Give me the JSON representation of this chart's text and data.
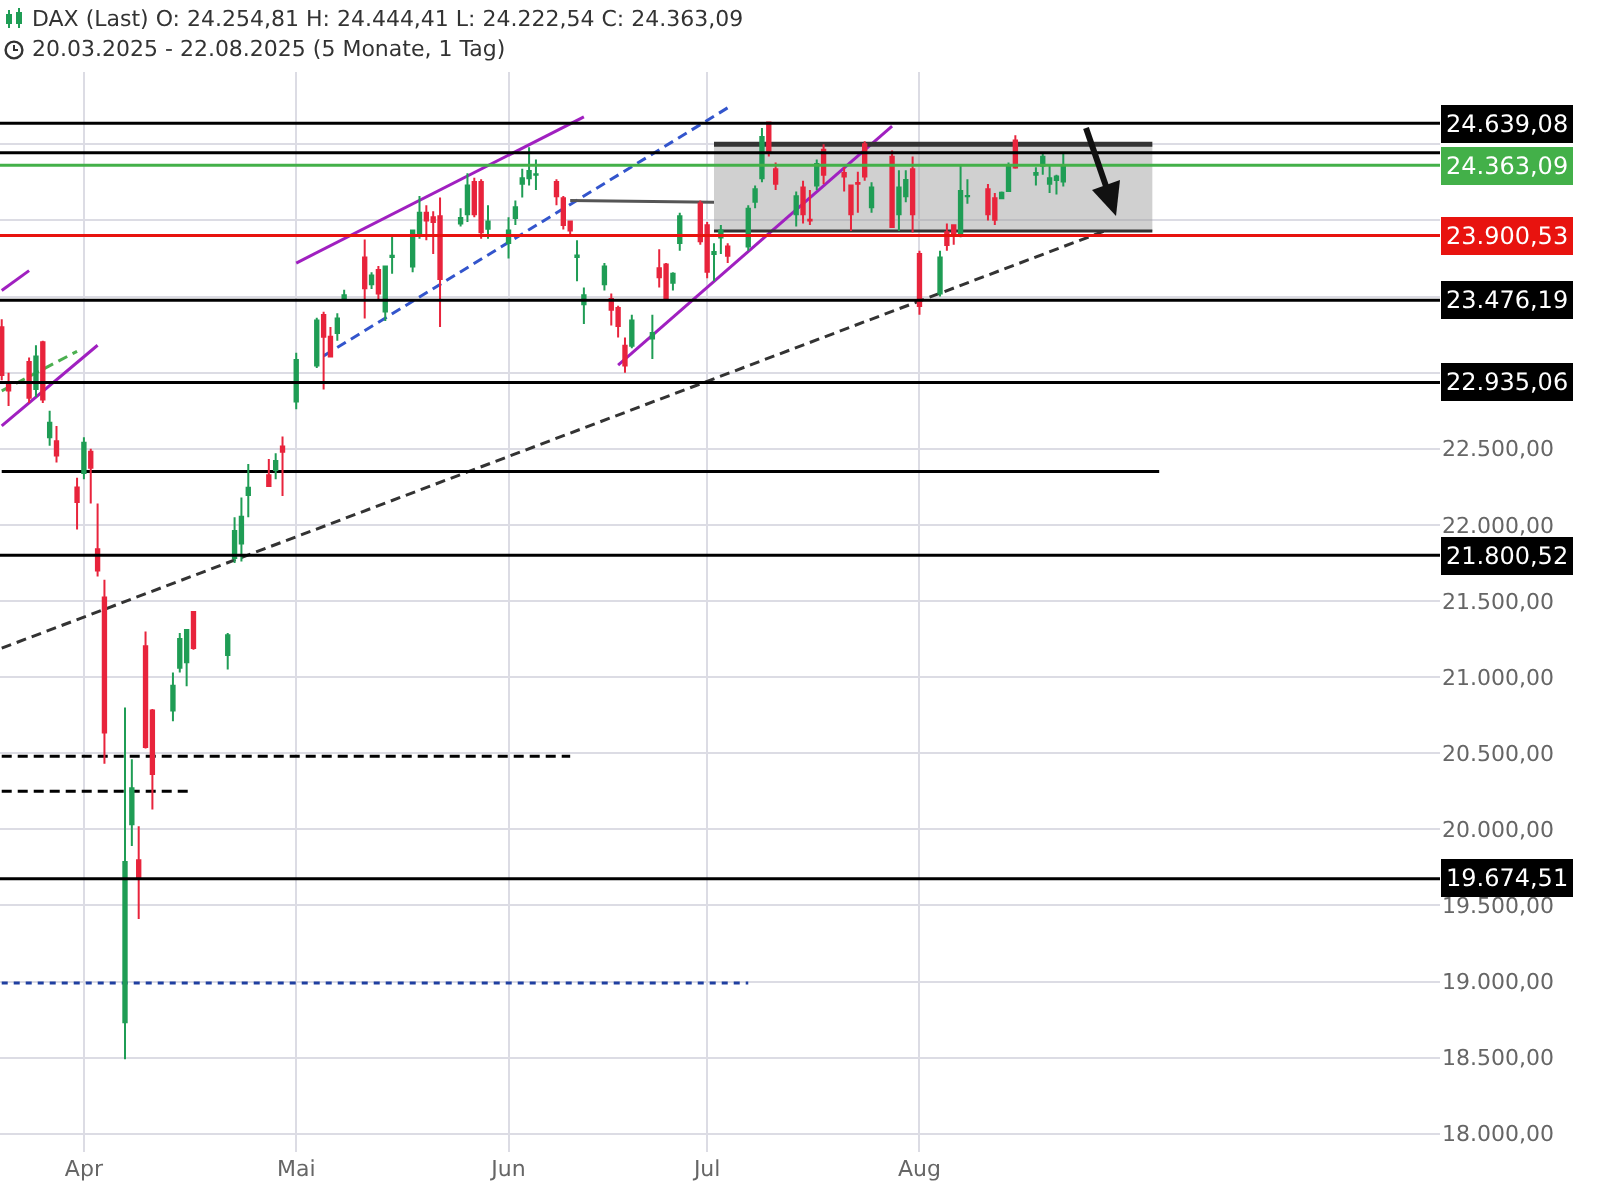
{
  "chart_data": {
    "type": "candlestick",
    "title": "DAX (Last)  O: 24.254,81  H: 24.444,41  L: 24.222,54  C: 24.363,09",
    "subtitle": "20.03.2025 - 22.08.2025 (5 Monate, 1 Tag)",
    "x": [
      "2025-03-20",
      "2025-03-21",
      "2025-03-24",
      "2025-03-25",
      "2025-03-26",
      "2025-03-27",
      "2025-03-28",
      "2025-03-31",
      "2025-04-01",
      "2025-04-02",
      "2025-04-03",
      "2025-04-04",
      "2025-04-07",
      "2025-04-08",
      "2025-04-09",
      "2025-04-10",
      "2025-04-11",
      "2025-04-14",
      "2025-04-15",
      "2025-04-16",
      "2025-04-17",
      "2025-04-22",
      "2025-04-23",
      "2025-04-24",
      "2025-04-25",
      "2025-04-28",
      "2025-04-29",
      "2025-04-30",
      "2025-05-02",
      "2025-05-05",
      "2025-05-06",
      "2025-05-07",
      "2025-05-08",
      "2025-05-09",
      "2025-05-12",
      "2025-05-13",
      "2025-05-14",
      "2025-05-15",
      "2025-05-16",
      "2025-05-19",
      "2025-05-20",
      "2025-05-21",
      "2025-05-22",
      "2025-05-23",
      "2025-05-26",
      "2025-05-27",
      "2025-05-28",
      "2025-05-29",
      "2025-05-30",
      "2025-06-02",
      "2025-06-03",
      "2025-06-04",
      "2025-06-05",
      "2025-06-06",
      "2025-06-09",
      "2025-06-10",
      "2025-06-11",
      "2025-06-12",
      "2025-06-13",
      "2025-06-16",
      "2025-06-17",
      "2025-06-18",
      "2025-06-19",
      "2025-06-20",
      "2025-06-23",
      "2025-06-24",
      "2025-06-25",
      "2025-06-26",
      "2025-06-27",
      "2025-06-30",
      "2025-07-01",
      "2025-07-02",
      "2025-07-03",
      "2025-07-04",
      "2025-07-07",
      "2025-07-08",
      "2025-07-09",
      "2025-07-10",
      "2025-07-11",
      "2025-07-14",
      "2025-07-15",
      "2025-07-16",
      "2025-07-17",
      "2025-07-18",
      "2025-07-21",
      "2025-07-22",
      "2025-07-23",
      "2025-07-24",
      "2025-07-25",
      "2025-07-28",
      "2025-07-29",
      "2025-07-30",
      "2025-07-31",
      "2025-08-01",
      "2025-08-04",
      "2025-08-05",
      "2025-08-06",
      "2025-08-07",
      "2025-08-08",
      "2025-08-11",
      "2025-08-12",
      "2025-08-13",
      "2025-08-14",
      "2025-08-15",
      "2025-08-18",
      "2025-08-19",
      "2025-08-20",
      "2025-08-21",
      "2025-08-22"
    ],
    "ohlc": [
      [
        23298,
        23350,
        22950,
        22985
      ],
      [
        22930,
        23000,
        22780,
        22882
      ],
      [
        23070,
        23100,
        22800,
        22835
      ],
      [
        22893,
        23180,
        22840,
        23106
      ],
      [
        23200,
        23210,
        22800,
        22823
      ],
      [
        22575,
        22750,
        22520,
        22670
      ],
      [
        22550,
        22650,
        22410,
        22455
      ],
      [
        22245,
        22310,
        21970,
        22150
      ],
      [
        22340,
        22575,
        22300,
        22540
      ],
      [
        22480,
        22500,
        22140,
        22375
      ],
      [
        21840,
        22140,
        21660,
        21700
      ],
      [
        21522,
        21640,
        20430,
        20636
      ],
      [
        18733,
        20800,
        18490,
        19785
      ],
      [
        20033,
        20460,
        19890,
        20270
      ],
      [
        19797,
        20020,
        19410,
        19680
      ],
      [
        21203,
        21300,
        20530,
        20541
      ],
      [
        20780,
        20790,
        20130,
        20364
      ],
      [
        20780,
        21030,
        20710,
        20943
      ],
      [
        21061,
        21290,
        21030,
        21250
      ],
      [
        21097,
        21310,
        20940,
        21310
      ],
      [
        21428,
        21430,
        21180,
        21191
      ],
      [
        21145,
        21290,
        21050,
        21274
      ],
      [
        21782,
        22050,
        21750,
        21960
      ],
      [
        21877,
        22180,
        21760,
        22054
      ],
      [
        22196,
        22400,
        22050,
        22243
      ],
      [
        22326,
        22432,
        22250,
        22255
      ],
      [
        22360,
        22470,
        22300,
        22420
      ],
      [
        22515,
        22580,
        22190,
        22480
      ],
      [
        22811,
        23130,
        22760,
        23083
      ],
      [
        23047,
        23360,
        23030,
        23343
      ],
      [
        23378,
        23400,
        22890,
        23236
      ],
      [
        23236,
        23300,
        23100,
        23106
      ],
      [
        23260,
        23390,
        23210,
        23355
      ],
      [
        23484,
        23544,
        23470,
        23508
      ],
      [
        23756,
        23875,
        23355,
        23555
      ],
      [
        23580,
        23660,
        23550,
        23638
      ],
      [
        23674,
        23700,
        23470,
        23520
      ],
      [
        23402,
        23700,
        23340,
        23697
      ],
      [
        23760,
        23900,
        23650,
        23768
      ],
      [
        23697,
        23934,
        23660,
        23934
      ],
      [
        23900,
        24160,
        23880,
        24050
      ],
      [
        24050,
        24100,
        23870,
        24000
      ],
      [
        24020,
        24060,
        23780,
        23990
      ],
      [
        24028,
        24150,
        23300,
        23615
      ],
      [
        23980,
        24080,
        23960,
        24016
      ],
      [
        24040,
        24310,
        23990,
        24229
      ],
      [
        24253,
        24280,
        24020,
        24040
      ],
      [
        24253,
        24270,
        23880,
        23922
      ],
      [
        23945,
        24100,
        23880,
        23993
      ],
      [
        23851,
        24020,
        23750,
        23934
      ],
      [
        24016,
        24130,
        23970,
        24087
      ],
      [
        24241,
        24340,
        24150,
        24277
      ],
      [
        24277,
        24480,
        24230,
        24324
      ],
      [
        24300,
        24400,
        24200,
        24304
      ],
      [
        24253,
        24270,
        24100,
        24158
      ],
      [
        24146,
        24160,
        23940,
        23970
      ],
      [
        23993,
        24000,
        23900,
        23934
      ],
      [
        23760,
        23870,
        23600,
        23770
      ],
      [
        23449,
        23560,
        23320,
        23508
      ],
      [
        23580,
        23720,
        23540,
        23697
      ],
      [
        23484,
        23520,
        23310,
        23413
      ],
      [
        23425,
        23440,
        23230,
        23307
      ],
      [
        23177,
        23230,
        23000,
        23047
      ],
      [
        23177,
        23380,
        23160,
        23343
      ],
      [
        23225,
        23380,
        23090,
        23260
      ],
      [
        23686,
        23810,
        23560,
        23626
      ],
      [
        23710,
        23720,
        23480,
        23485
      ],
      [
        23590,
        23660,
        23540,
        23650
      ],
      [
        23851,
        24050,
        23800,
        24028
      ],
      [
        24111,
        24130,
        23840,
        23863
      ],
      [
        23969,
        23990,
        23620,
        23662
      ],
      [
        23780,
        23850,
        23600,
        23792
      ],
      [
        23887,
        23970,
        23780,
        23934
      ],
      [
        23828,
        23850,
        23720,
        23768
      ],
      [
        23828,
        24100,
        23800,
        24076
      ],
      [
        24123,
        24230,
        24080,
        24205
      ],
      [
        24277,
        24607,
        24250,
        24548
      ],
      [
        24643,
        24650,
        24420,
        24454
      ],
      [
        24336,
        24380,
        24200,
        24241
      ],
      [
        24040,
        24190,
        23960,
        24158
      ],
      [
        24217,
        24260,
        23980,
        24040
      ],
      [
        24005,
        24200,
        23970,
        24000
      ],
      [
        24229,
        24400,
        24200,
        24371
      ],
      [
        24465,
        24500,
        24240,
        24300
      ],
      [
        24312,
        24350,
        24190,
        24288
      ],
      [
        24229,
        24230,
        23930,
        24040
      ],
      [
        24245,
        24320,
        24050,
        24241
      ],
      [
        24501,
        24520,
        24260,
        24288
      ],
      [
        24087,
        24250,
        24050,
        24217
      ],
      [
        24418,
        24460,
        23950,
        23957
      ],
      [
        24040,
        24330,
        23930,
        24217
      ],
      [
        24158,
        24330,
        24120,
        24265
      ],
      [
        24336,
        24420,
        23920,
        24040
      ],
      [
        23780,
        23800,
        23380,
        23437
      ],
      [
        23520,
        23800,
        23500,
        23756
      ],
      [
        23922,
        23980,
        23800,
        23839
      ],
      [
        23969,
        23970,
        23840,
        23910
      ],
      [
        23898,
        24370,
        23890,
        24194
      ],
      [
        24158,
        24270,
        24110,
        24160
      ],
      [
        24205,
        24240,
        24000,
        24040
      ],
      [
        24146,
        24180,
        23970,
        24005
      ],
      [
        24146,
        24190,
        24140,
        24182
      ],
      [
        24194,
        24380,
        24190,
        24359
      ],
      [
        24525,
        24560,
        24340,
        24347
      ],
      [
        24300,
        24350,
        24230,
        24312
      ],
      [
        24359,
        24450,
        24300,
        24418
      ],
      [
        24241,
        24360,
        24180,
        24277
      ],
      [
        24265,
        24300,
        24170,
        24288
      ],
      [
        24254.81,
        24444.41,
        24222.54,
        24363.09
      ]
    ],
    "colors": [
      "#e8243c",
      "#e8243c",
      "#e8243c",
      "#1f9d55",
      "#e8243c",
      "#1f9d55",
      "#e8243c",
      "#e8243c",
      "#1f9d55",
      "#e8243c",
      "#e8243c",
      "#e8243c",
      "#1f9d55",
      "#1f9d55",
      "#e8243c",
      "#e8243c",
      "#e8243c",
      "#1f9d55",
      "#1f9d55",
      "#1f9d55",
      "#e8243c",
      "#1f9d55",
      "#1f9d55",
      "#1f9d55",
      "#1f9d55",
      "#e8243c",
      "#1f9d55",
      "#e8243c",
      "#1f9d55",
      "#1f9d55",
      "#e8243c",
      "#e8243c",
      "#1f9d55",
      "#1f9d55",
      "#e8243c",
      "#1f9d55",
      "#e8243c",
      "#1f9d55",
      "#1f9d55",
      "#1f9d55",
      "#1f9d55",
      "#e8243c",
      "#e8243c",
      "#e8243c",
      "#1f9d55",
      "#1f9d55",
      "#e8243c",
      "#e8243c",
      "#1f9d55",
      "#1f9d55",
      "#1f9d55",
      "#1f9d55",
      "#1f9d55",
      "#1f9d55",
      "#e8243c",
      "#e8243c",
      "#e8243c",
      "#1f9d55",
      "#1f9d55",
      "#1f9d55",
      "#e8243c",
      "#e8243c",
      "#e8243c",
      "#1f9d55",
      "#1f9d55",
      "#e8243c",
      "#e8243c",
      "#1f9d55",
      "#1f9d55",
      "#e8243c",
      "#e8243c",
      "#1f9d55",
      "#1f9d55",
      "#e8243c",
      "#1f9d55",
      "#1f9d55",
      "#1f9d55",
      "#e8243c",
      "#e8243c",
      "#1f9d55",
      "#e8243c",
      "#e8243c",
      "#1f9d55",
      "#e8243c",
      "#e8243c",
      "#e8243c",
      "#e8243c",
      "#e8243c",
      "#1f9d55",
      "#e8243c",
      "#1f9d55",
      "#1f9d55",
      "#e8243c",
      "#e8243c",
      "#1f9d55",
      "#e8243c",
      "#e8243c",
      "#1f9d55",
      "#1f9d55",
      "#e8243c",
      "#e8243c",
      "#1f9d55",
      "#1f9d55",
      "#e8243c",
      "#1f9d55",
      "#1f9d55",
      "#1f9d55",
      "#1f9d55",
      "#1f9d55"
    ],
    "series": [
      {
        "type": "line",
        "color": "#a020c0",
        "x": [
          "2025-03-20",
          "2025-03-24"
        ],
        "values": [
          23540,
          23670
        ]
      },
      {
        "type": "line",
        "color": "#a020c0",
        "x": [
          "2025-03-20",
          "2025-04-03"
        ],
        "values": [
          22650,
          23180
        ]
      },
      {
        "type": "line",
        "color": "#4caf50",
        "line_style": "dashed",
        "x": [
          "2025-03-20",
          "2025-03-31"
        ],
        "values": [
          22880,
          23140
        ]
      },
      {
        "type": "line",
        "color": "#a020c0",
        "x": [
          "2025-05-02",
          "2025-06-13"
        ],
        "values": [
          23720,
          24680
        ]
      },
      {
        "type": "line",
        "color": "#3355cc",
        "line_style": "dashed",
        "x": [
          "2025-05-06",
          "2025-07-04"
        ],
        "values": [
          23110,
          24740
        ]
      },
      {
        "type": "line",
        "color": "#a020c0",
        "x": [
          "2025-06-18",
          "2025-07-28"
        ],
        "values": [
          23050,
          24620
        ]
      },
      {
        "type": "line",
        "color": "#333333",
        "line_style": "dashed",
        "x": [
          "2025-03-20",
          "2025-08-28"
        ],
        "values": [
          21190,
          23930
        ]
      },
      {
        "type": "line",
        "color": "#555555",
        "x": [
          "2025-06-11",
          "2025-07-02"
        ],
        "values": [
          24130,
          24120
        ]
      },
      {
        "type": "line",
        "color": "#000000",
        "x": [
          "2025-03-20",
          "2025-09-05"
        ],
        "values": [
          22350,
          22350
        ]
      },
      {
        "type": "line",
        "color": "#000000",
        "line_style": "dashed",
        "x": [
          "2025-03-20",
          "2025-06-11"
        ],
        "values": [
          20480,
          20480
        ]
      },
      {
        "type": "line",
        "color": "#000000",
        "line_style": "dashed",
        "x": [
          "2025-03-20",
          "2025-04-17"
        ],
        "values": [
          20250,
          20250
        ]
      },
      {
        "type": "line",
        "color": "#1f3fa0",
        "line_style": "dotted",
        "x": [
          "2025-03-20",
          "2025-07-07"
        ],
        "values": [
          18990,
          18990
        ]
      },
      {
        "type": "line",
        "color": "#333333",
        "x": [
          "2025-07-02",
          "2025-09-04"
        ],
        "values": [
          24500,
          24500
        ],
        "lower": [
          23930,
          23930
        ],
        "upper": [
          24500,
          24500
        ]
      },
      {
        "type": "line",
        "color": "#333333",
        "x": [
          "2025-07-02",
          "2025-09-04"
        ],
        "values": [
          23930,
          23930
        ]
      }
    ],
    "ref_lines": [
      {
        "axis": "y",
        "value": 24639.08,
        "label": "24.639,08",
        "color": "#000000"
      },
      {
        "axis": "y",
        "value": 24444.41,
        "color": "#000000"
      },
      {
        "axis": "y",
        "value": 24363.09,
        "label": "24.363,09",
        "color": "#43b049"
      },
      {
        "axis": "y",
        "value": 23900.53,
        "label": "23.900,53",
        "color": "#e8130f"
      },
      {
        "axis": "y",
        "value": 23476.19,
        "label": "23.476,19",
        "color": "#000000"
      },
      {
        "axis": "y",
        "value": 22935.06,
        "label": "22.935,06",
        "color": "#000000"
      },
      {
        "axis": "y",
        "value": 21800.52,
        "label": "21.800,52",
        "color": "#000000"
      },
      {
        "axis": "y",
        "value": 19674.51,
        "label": "19.674,51",
        "color": "#000000"
      }
    ],
    "xlim": [
      "2025-03-19T18:00",
      "2025-10-16"
    ],
    "xticks": [
      {
        "value": "2025-04-01",
        "label": "Apr"
      },
      {
        "value": "2025-05-02",
        "label": "Mai"
      },
      {
        "value": "2025-06-02",
        "label": "Jun"
      },
      {
        "value": "2025-07-01",
        "label": "Jul"
      },
      {
        "value": "2025-08-01",
        "label": "Aug"
      }
    ],
    "ylim": [
      17880,
      24975
    ],
    "yticks": [
      {
        "value": 18000,
        "label": "18.000,00"
      },
      {
        "value": 18500,
        "label": "18.500,00"
      },
      {
        "value": 19000,
        "label": "19.000,00"
      },
      {
        "value": 19500,
        "label": "19.500,00"
      },
      {
        "value": 20000,
        "label": "20.000,00"
      },
      {
        "value": 20500,
        "label": "20.500,00"
      },
      {
        "value": 21000,
        "label": "21.000,00"
      },
      {
        "value": 21500,
        "label": "21.500,00"
      },
      {
        "value": 22000,
        "label": "22.000,00"
      },
      {
        "value": 22500,
        "label": "22.500,00"
      },
      {
        "value": 23000,
        "label": null
      },
      {
        "value": 23500,
        "label": null
      },
      {
        "value": 24000,
        "label": null
      },
      {
        "value": 24500,
        "label": null
      }
    ],
    "grid": true
  }
}
